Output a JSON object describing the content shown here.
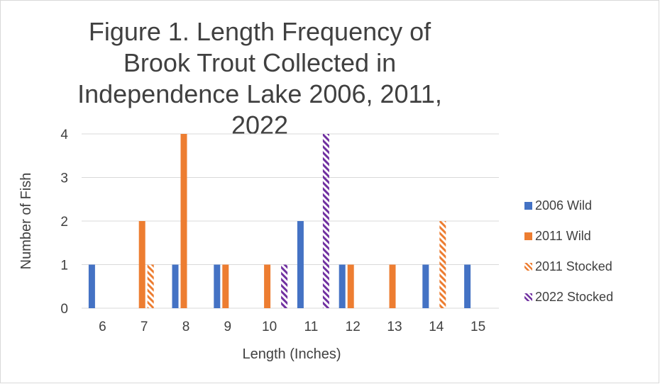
{
  "chart_data": {
    "type": "bar",
    "title": "Figure 1. Length Frequency of Brook Trout Collected in Independence Lake 2006, 2011, 2022",
    "xlabel": "Length (Inches)",
    "ylabel": "Number of Fish",
    "categories": [
      "6",
      "7",
      "8",
      "9",
      "10",
      "11",
      "12",
      "13",
      "14",
      "15"
    ],
    "ylim": [
      0,
      4
    ],
    "yticks": [
      0,
      1,
      2,
      3,
      4
    ],
    "grid": "horizontal",
    "legend_position": "right",
    "series": [
      {
        "name": "2006 Wild",
        "color": "#4472c4",
        "pattern": "solid",
        "values": [
          1,
          0,
          1,
          1,
          0,
          2,
          1,
          0,
          1,
          1
        ]
      },
      {
        "name": "2011 Wild",
        "color": "#ed7d31",
        "pattern": "solid",
        "values": [
          0,
          2,
          4,
          1,
          1,
          0,
          1,
          1,
          0,
          0
        ]
      },
      {
        "name": "2011 Stocked",
        "color": "#ed7d31",
        "pattern": "diagonal-hatch",
        "values": [
          0,
          1,
          0,
          0,
          0,
          0,
          0,
          0,
          2,
          0
        ]
      },
      {
        "name": "2022 Stocked",
        "color": "#7030a0",
        "pattern": "diagonal-hatch",
        "values": [
          0,
          0,
          0,
          0,
          1,
          4,
          0,
          0,
          0,
          0
        ]
      }
    ]
  }
}
